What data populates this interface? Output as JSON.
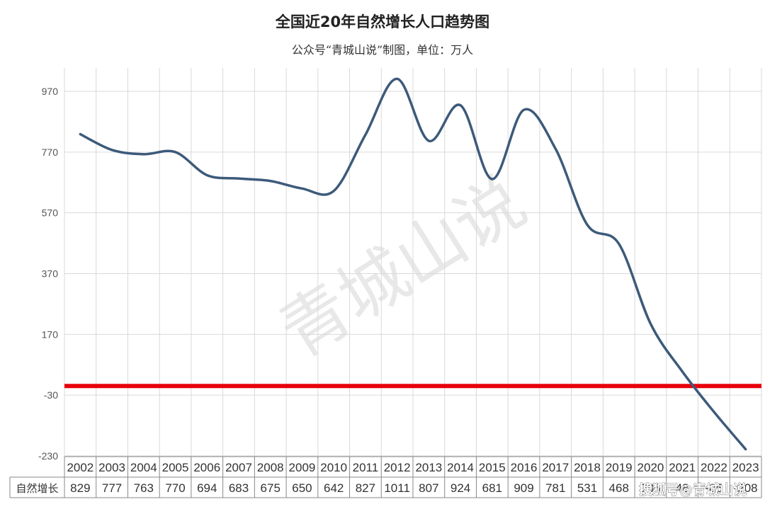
{
  "title": "全国近20年自然增长人口趋势图",
  "subtitle": "公众号“青城山说”制图，单位：万人",
  "watermark_center": "青城山说",
  "watermark_corner": "搜狐号@青城山说",
  "colors": {
    "line": "#3d5a7a",
    "reference_line": "#e8000b",
    "grid": "#d9d9d9",
    "table_border": "#888888"
  },
  "chart_data": {
    "type": "line",
    "categories": [
      "2002",
      "2003",
      "2004",
      "2005",
      "2006",
      "2007",
      "2008",
      "2009",
      "2010",
      "2011",
      "2012",
      "2013",
      "2014",
      "2015",
      "2016",
      "2017",
      "2018",
      "2019",
      "2020",
      "2021",
      "2022",
      "2023"
    ],
    "series": [
      {
        "name": "自然增长",
        "values": [
          829,
          777,
          763,
          770,
          694,
          683,
          675,
          650,
          642,
          827,
          1011,
          807,
          924,
          681,
          909,
          781,
          531,
          468,
          205,
          48,
          -85,
          -208
        ]
      }
    ],
    "table_labels": [
      "829",
      "777",
      "763",
      "770",
      "694",
      "683",
      "675",
      "650",
      "642",
      "827",
      "1011",
      "807",
      "924",
      "681",
      "909",
      "781",
      "531",
      "468",
      "205",
      "48",
      "-85",
      "-208"
    ],
    "y_ticks": [
      970,
      770,
      570,
      370,
      170,
      -30,
      -230
    ],
    "ylim": [
      -230,
      1050
    ],
    "reference_line_y": 0,
    "grid": true,
    "smooth": true
  }
}
